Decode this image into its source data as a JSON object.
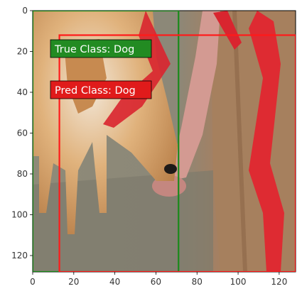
{
  "image_extent": {
    "x": [
      0,
      128
    ],
    "y": [
      0,
      128
    ]
  },
  "x_ticks": [
    "0",
    "20",
    "40",
    "60",
    "80",
    "100",
    "120"
  ],
  "y_ticks": [
    "0",
    "20",
    "40",
    "60",
    "80",
    "100",
    "120"
  ],
  "true_box": {
    "label": "True Class: Dog",
    "x": [
      0,
      71
    ],
    "y": [
      0,
      128
    ],
    "color": "#1a8a1a"
  },
  "pred_box": {
    "label": "Pred Class: Dog",
    "x": [
      13,
      128
    ],
    "y": [
      12,
      128
    ],
    "color": "#ff1a1a"
  },
  "badge_colors": {
    "true": "#228b22",
    "pred": "#e01b1b"
  }
}
